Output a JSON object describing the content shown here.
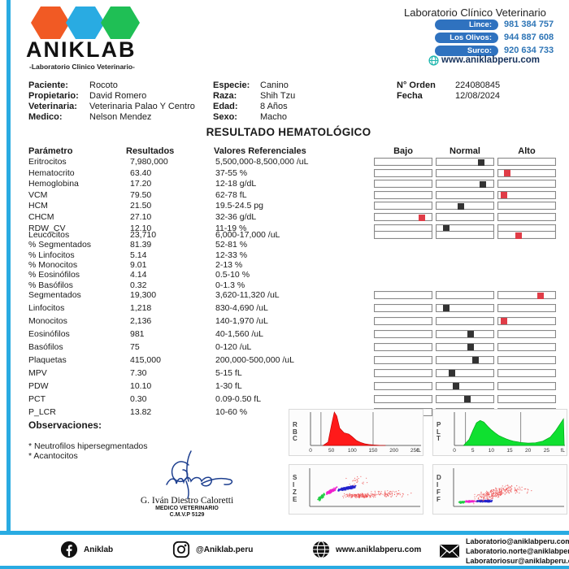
{
  "header": {
    "logo": {
      "brand": "ANIKLAB",
      "tagline": "-Laboratorio Clinico Veterinario-",
      "hex_colors": [
        "#F15A24",
        "#29ABE2",
        "#1FBF55"
      ]
    },
    "title": "Laboratorio Clínico Veterinario",
    "branches": [
      {
        "label": "Lince:",
        "phone": "981 384 757"
      },
      {
        "label": "Los Olivos:",
        "phone": "944 887 608"
      },
      {
        "label": "Surco:",
        "phone": "920 634 733"
      }
    ],
    "website": "www.aniklabperu.com"
  },
  "patient": {
    "left": [
      {
        "label": "Paciente:",
        "value": "Rocoto"
      },
      {
        "label": "Propietario:",
        "value": "David Romero"
      },
      {
        "label": "Veterinaria:",
        "value": "Veterinaria Palao Y Centro"
      },
      {
        "label": "Medico:",
        "value": "Nelson Mendez"
      }
    ],
    "mid": [
      {
        "label": "Especie:",
        "value": "Canino"
      },
      {
        "label": "Raza:",
        "value": "Shih Tzu"
      },
      {
        "label": "Edad:",
        "value": "8 Años"
      },
      {
        "label": "Sexo:",
        "value": "Macho"
      }
    ],
    "right": [
      {
        "label": "N° Orden",
        "value": "224080845"
      },
      {
        "label": "Fecha",
        "value": "12/08/2024"
      }
    ]
  },
  "report": {
    "title": "RESULTADO HEMATOLÓGICO",
    "columns": {
      "param": "Parámetro",
      "result": "Resultados",
      "ref": "Valores Referenciales",
      "low": "Bajo",
      "normal": "Normal",
      "high": "Alto"
    },
    "marker_colors": {
      "normal": "#333333",
      "abnormal": "#E03C47"
    },
    "groups": [
      {
        "rows": [
          {
            "param": "Eritrocitos",
            "result": "7,980,000",
            "ref": "5,500,000-8,500,000 /uL",
            "bars": true,
            "flag": "normal",
            "pos": 0.8
          },
          {
            "param": "Hematocrito",
            "result": "63.40",
            "ref": "37-55 %",
            "bars": true,
            "flag": "high",
            "pos": 0.1
          },
          {
            "param": "Hemoglobina",
            "result": "17.20",
            "ref": "12-18 g/dL",
            "bars": true,
            "flag": "normal",
            "pos": 0.84
          },
          {
            "param": "VCM",
            "result": "79.50",
            "ref": "62-78 fL",
            "bars": true,
            "flag": "high",
            "pos": 0.04
          },
          {
            "param": "HCM",
            "result": "21.50",
            "ref": "19.5-24.5 pg",
            "bars": true,
            "flag": "normal",
            "pos": 0.4
          },
          {
            "param": "CHCM",
            "result": "27.10",
            "ref": "32-36 g/dL",
            "bars": true,
            "flag": "low",
            "pos": 0.85
          },
          {
            "param": "RDW_CV",
            "result": "12.10",
            "ref": "11-19 %",
            "bars": true,
            "flag": "normal",
            "pos": 0.12
          }
        ]
      },
      {
        "rows": [
          {
            "param": "Leucocitos",
            "result": "23,710",
            "ref": "6,000-17,000 /uL",
            "bars": true,
            "flag": "high",
            "pos": 0.33
          },
          {
            "param": "% Segmentados",
            "result": "81.39",
            "ref": "52-81 %",
            "bars": false
          },
          {
            "param": "% Linfocitos",
            "result": "5.14",
            "ref": "12-33 %",
            "bars": false
          },
          {
            "param": "% Monocitos",
            "result": "9.01",
            "ref": "2-13 %",
            "bars": false
          },
          {
            "param": "% Eosinófilos",
            "result": "4.14",
            "ref": "0.5-10 %",
            "bars": false
          },
          {
            "param": "% Basófilos",
            "result": "0.32",
            "ref": "0-1.3 %",
            "bars": false
          }
        ]
      },
      {
        "rows": [
          {
            "param": "Segmentados",
            "result": "19,300",
            "ref": "3,620-11,320 /uL",
            "bars": true,
            "flag": "high",
            "pos": 0.76
          },
          {
            "param": "Linfocitos",
            "result": "1,218",
            "ref": "830-4,690 /uL",
            "bars": true,
            "flag": "normal",
            "pos": 0.11
          },
          {
            "param": "Monocitos",
            "result": "2,136",
            "ref": "140-1,970 /uL",
            "bars": true,
            "flag": "high",
            "pos": 0.04
          },
          {
            "param": "Eosinófilos",
            "result": "981",
            "ref": "40-1,560 /uL",
            "bars": true,
            "flag": "normal",
            "pos": 0.6
          },
          {
            "param": "Basófilos",
            "result": "75",
            "ref": "0-120 /uL",
            "bars": true,
            "flag": "normal",
            "pos": 0.6
          }
        ]
      },
      {
        "rows": [
          {
            "param": "Plaquetas",
            "result": "415,000",
            "ref": "200,000-500,000 /uL",
            "bars": true,
            "flag": "normal",
            "pos": 0.7
          },
          {
            "param": "MPV",
            "result": "7.30",
            "ref": "5-15 fL",
            "bars": true,
            "flag": "normal",
            "pos": 0.22
          },
          {
            "param": "PDW",
            "result": "10.10",
            "ref": "1-30 fL",
            "bars": true,
            "flag": "normal",
            "pos": 0.31
          },
          {
            "param": "PCT",
            "result": "0.30",
            "ref": "0.09-0.50 fL",
            "bars": true,
            "flag": "normal",
            "pos": 0.53
          },
          {
            "param": "P_LCR",
            "result": "13.82",
            "ref": "10-60 %",
            "bars": true,
            "flag": "normal",
            "pos": 0.08
          }
        ]
      }
    ]
  },
  "observations": {
    "title": "Observaciones:",
    "items": [
      "* Neutrofilos hipersegmentados",
      "* Acantocitos"
    ]
  },
  "signature": {
    "name": "G. Iván Diestro Caloretti",
    "role": "MEDICO VETERINARIO",
    "license": "C.M.V.P 5129"
  },
  "chart_data": [
    {
      "id": "rbc",
      "type": "area",
      "title": "RBC",
      "color": "#FF1A1A",
      "stroke": "#C40000",
      "x_ticks": [
        0,
        50,
        100,
        150,
        200,
        250
      ],
      "x_unit": "fL",
      "x_max": 265,
      "marker_lines": [
        25,
        150
      ],
      "points": [
        [
          30,
          0
        ],
        [
          42,
          0.1
        ],
        [
          50,
          0.6
        ],
        [
          57,
          1.0
        ],
        [
          63,
          0.88
        ],
        [
          70,
          0.52
        ],
        [
          80,
          0.38
        ],
        [
          92,
          0.34
        ],
        [
          100,
          0.26
        ],
        [
          110,
          0.15
        ],
        [
          120,
          0.09
        ],
        [
          130,
          0.05
        ],
        [
          140,
          0.03
        ],
        [
          150,
          0.015
        ],
        [
          165,
          0.006
        ],
        [
          180,
          0
        ]
      ]
    },
    {
      "id": "plt",
      "type": "area",
      "title": "PLT",
      "color": "#0FE030",
      "stroke": "#00A818",
      "x_ticks": [
        0,
        5,
        10,
        15,
        20,
        25
      ],
      "x_unit": "fL",
      "x_max": 30,
      "marker_lines": [
        3,
        18
      ],
      "points": [
        [
          2.5,
          0
        ],
        [
          4,
          0.18
        ],
        [
          5,
          0.45
        ],
        [
          6,
          0.68
        ],
        [
          7,
          0.75
        ],
        [
          8,
          0.7
        ],
        [
          9,
          0.58
        ],
        [
          10,
          0.47
        ],
        [
          11,
          0.38
        ],
        [
          12,
          0.3
        ],
        [
          13,
          0.25
        ],
        [
          14,
          0.2
        ],
        [
          15,
          0.16
        ],
        [
          16,
          0.13
        ],
        [
          17,
          0.11
        ],
        [
          18,
          0.09
        ],
        [
          20,
          0.07
        ],
        [
          22,
          0.08
        ],
        [
          24,
          0.13
        ],
        [
          26,
          0.25
        ],
        [
          27.5,
          0.45
        ],
        [
          29,
          0.7
        ],
        [
          29.6,
          0.8
        ],
        [
          29.8,
          0
        ]
      ]
    },
    {
      "id": "size",
      "type": "scatter",
      "title": "SIZE",
      "clusters": [
        {
          "color": "#22CC44",
          "cx": 0.09,
          "cy": 0.8,
          "rx": 0.035,
          "ry": 0.07,
          "count": 70,
          "r": 0.9,
          "slope": -0.5
        },
        {
          "color": "#EE22CC",
          "cx": 0.19,
          "cy": 0.62,
          "rx": 0.055,
          "ry": 0.05,
          "count": 110,
          "r": 0.9,
          "slope": -0.35
        },
        {
          "color": "#2222CC",
          "cx": 0.33,
          "cy": 0.55,
          "rx": 0.09,
          "ry": 0.045,
          "count": 170,
          "r": 0.9,
          "slope": -0.15
        },
        {
          "color": "#EE5555",
          "cx": 0.45,
          "cy": 0.75,
          "rx": 0.17,
          "ry": 0.07,
          "count": 170,
          "r": 0.6,
          "slope": 0
        },
        {
          "color": "#EE5555",
          "cx": 0.72,
          "cy": 0.7,
          "rx": 0.22,
          "ry": 0.1,
          "count": 80,
          "r": 0.6,
          "slope": 0
        },
        {
          "color": "#EE5555",
          "cx": 0.4,
          "cy": 0.35,
          "rx": 0.14,
          "ry": 0.14,
          "count": 22,
          "r": 0.6,
          "slope": 0
        }
      ]
    },
    {
      "id": "diff",
      "type": "scatter",
      "title": "DIFF",
      "clusters": [
        {
          "color": "#22CC44",
          "cx": 0.06,
          "cy": 0.93,
          "rx": 0.03,
          "ry": 0.03,
          "count": 60,
          "r": 0.9,
          "slope": 0
        },
        {
          "color": "#EE22CC",
          "cx": 0.14,
          "cy": 0.91,
          "rx": 0.05,
          "ry": 0.025,
          "count": 90,
          "r": 0.9,
          "slope": 0
        },
        {
          "color": "#2222CC",
          "cx": 0.27,
          "cy": 0.9,
          "rx": 0.08,
          "ry": 0.03,
          "count": 140,
          "r": 0.9,
          "slope": 0
        },
        {
          "color": "#EE5555",
          "cx": 0.35,
          "cy": 0.7,
          "rx": 0.2,
          "ry": 0.16,
          "count": 230,
          "r": 0.6,
          "slope": -0.2
        },
        {
          "color": "#EE5555",
          "cx": 0.58,
          "cy": 0.58,
          "rx": 0.16,
          "ry": 0.12,
          "count": 40,
          "r": 0.6,
          "slope": 0
        }
      ]
    }
  ],
  "footer": {
    "facebook": "Aniklab",
    "instagram": "@Aniklab.peru",
    "website": "www.aniklabperu.com",
    "emails": [
      "Laboratorio@aniklabperu.com",
      "Laboratorio.norte@aniklabperu.com",
      "Laboratoriosur@aniklabperu.com"
    ]
  }
}
